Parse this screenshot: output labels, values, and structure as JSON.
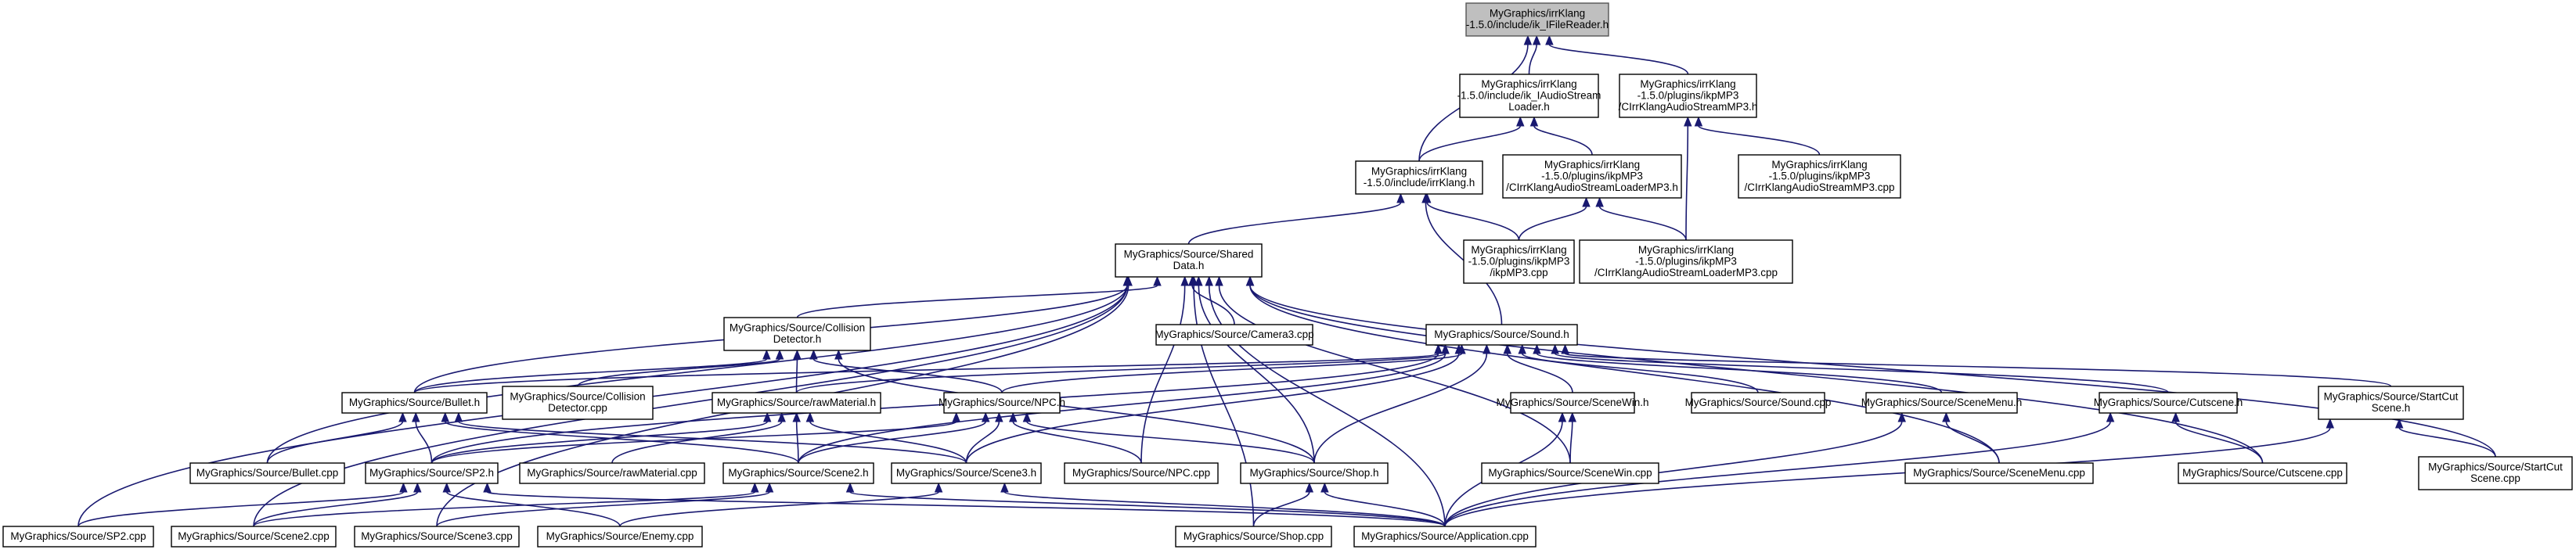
{
  "nodes": {
    "ikIFileReader": [
      "MyGraphics/irrKlang",
      "-1.5.0/include/ik_IFileReader.h"
    ],
    "ikAudioLoader": [
      "MyGraphics/irrKlang",
      "-1.5.0/include/ik_IAudioStream",
      "Loader.h"
    ],
    "CIrrStreamMP3h": [
      "MyGraphics/irrKlang",
      "-1.5.0/plugins/ikpMP3",
      "/CIrrKlangAudioStreamMP3.h"
    ],
    "irrKlangh": [
      "MyGraphics/irrKlang",
      "-1.5.0/include/irrKlang.h"
    ],
    "CIrrLoaderMP3h": [
      "MyGraphics/irrKlang",
      "-1.5.0/plugins/ikpMP3",
      "/CIrrKlangAudioStreamLoaderMP3.h"
    ],
    "CIrrStreamMP3cpp": [
      "MyGraphics/irrKlang",
      "-1.5.0/plugins/ikpMP3",
      "/CIrrKlangAudioStreamMP3.cpp"
    ],
    "SharedData": [
      "MyGraphics/Source/Shared",
      "Data.h"
    ],
    "ikpMP3cpp": [
      "MyGraphics/irrKlang",
      "-1.5.0/plugins/ikpMP3",
      "/ikpMP3.cpp"
    ],
    "CIrrLoaderMP3cpp": [
      "MyGraphics/irrKlang",
      "-1.5.0/plugins/ikpMP3",
      "/CIrrKlangAudioStreamLoaderMP3.cpp"
    ],
    "CollisionDetectorh": [
      "MyGraphics/Source/Collision",
      "Detector.h"
    ],
    "Camera3cpp": [
      "MyGraphics/Source/Camera3.cpp"
    ],
    "Soundh": [
      "MyGraphics/Source/Sound.h"
    ],
    "Bulleth": [
      "MyGraphics/Source/Bullet.h"
    ],
    "CollisionDetectorcpp": [
      "MyGraphics/Source/Collision",
      "Detector.cpp"
    ],
    "rawMaterialh": [
      "MyGraphics/Source/rawMaterial.h"
    ],
    "NPCh": [
      "MyGraphics/Source/NPC.h"
    ],
    "SceneWinh": [
      "MyGraphics/Source/SceneWin.h"
    ],
    "Soundcpp": [
      "MyGraphics/Source/Sound.cpp"
    ],
    "SceneMenuh": [
      "MyGraphics/Source/SceneMenu.h"
    ],
    "Cutsceneh": [
      "MyGraphics/Source/Cutscene.h"
    ],
    "StartCutSceneh": [
      "MyGraphics/Source/StartCut",
      "Scene.h"
    ],
    "Bulletcpp": [
      "MyGraphics/Source/Bullet.cpp"
    ],
    "SP2h": [
      "MyGraphics/Source/SP2.h"
    ],
    "rawMaterialcpp": [
      "MyGraphics/Source/rawMaterial.cpp"
    ],
    "Scene2h": [
      "MyGraphics/Source/Scene2.h"
    ],
    "Scene3h": [
      "MyGraphics/Source/Scene3.h"
    ],
    "NPCcpp": [
      "MyGraphics/Source/NPC.cpp"
    ],
    "Shoph": [
      "MyGraphics/Source/Shop.h"
    ],
    "SceneWincpp": [
      "MyGraphics/Source/SceneWin.cpp"
    ],
    "SceneMenucpp": [
      "MyGraphics/Source/SceneMenu.cpp"
    ],
    "Cutscenecpp": [
      "MyGraphics/Source/Cutscene.cpp"
    ],
    "StartCutScenecpp": [
      "MyGraphics/Source/StartCut",
      "Scene.cpp"
    ],
    "SP2cpp": [
      "MyGraphics/Source/SP2.cpp"
    ],
    "Scene2cpp": [
      "MyGraphics/Source/Scene2.cpp"
    ],
    "Scene3cpp": [
      "MyGraphics/Source/Scene3.cpp"
    ],
    "Enemycpp": [
      "MyGraphics/Source/Enemy.cpp"
    ],
    "Shopcpp": [
      "MyGraphics/Source/Shop.cpp"
    ],
    "Applicationcpp": [
      "MyGraphics/Source/Application.cpp"
    ]
  },
  "root": "ikIFileReader",
  "edges": [
    [
      "ikAudioLoader",
      "ikIFileReader"
    ],
    [
      "CIrrStreamMP3h",
      "ikIFileReader"
    ],
    [
      "irrKlangh",
      "ikIFileReader"
    ],
    [
      "irrKlangh",
      "ikAudioLoader"
    ],
    [
      "CIrrLoaderMP3h",
      "ikAudioLoader"
    ],
    [
      "CIrrStreamMP3cpp",
      "CIrrStreamMP3h"
    ],
    [
      "CIrrLoaderMP3cpp",
      "CIrrStreamMP3h"
    ],
    [
      "SharedData",
      "irrKlangh"
    ],
    [
      "Soundh",
      "irrKlangh"
    ],
    [
      "ikpMP3cpp",
      "irrKlangh"
    ],
    [
      "ikpMP3cpp",
      "CIrrLoaderMP3h"
    ],
    [
      "CIrrLoaderMP3cpp",
      "CIrrLoaderMP3h"
    ],
    [
      "CollisionDetectorh",
      "SharedData"
    ],
    [
      "Camera3cpp",
      "SharedData"
    ],
    [
      "Bulleth",
      "SharedData"
    ],
    [
      "NPCcpp",
      "SharedData"
    ],
    [
      "Shoph",
      "SharedData"
    ],
    [
      "SceneWincpp",
      "SharedData"
    ],
    [
      "SceneMenucpp",
      "SharedData"
    ],
    [
      "Cutscenecpp",
      "SharedData"
    ],
    [
      "StartCutScenecpp",
      "SharedData"
    ],
    [
      "SP2cpp",
      "SharedData"
    ],
    [
      "Scene2cpp",
      "SharedData"
    ],
    [
      "Scene3cpp",
      "SharedData"
    ],
    [
      "Bulletcpp",
      "SharedData"
    ],
    [
      "Shopcpp",
      "SharedData"
    ],
    [
      "Applicationcpp",
      "SharedData"
    ],
    [
      "Bulleth",
      "CollisionDetectorh"
    ],
    [
      "CollisionDetectorcpp",
      "CollisionDetectorh"
    ],
    [
      "rawMaterialh",
      "CollisionDetectorh"
    ],
    [
      "NPCh",
      "CollisionDetectorh"
    ],
    [
      "Shoph",
      "CollisionDetectorh"
    ],
    [
      "Bulleth",
      "Soundh"
    ],
    [
      "rawMaterialh",
      "Soundh"
    ],
    [
      "NPCh",
      "Soundh"
    ],
    [
      "SceneWinh",
      "Soundh"
    ],
    [
      "Soundcpp",
      "Soundh"
    ],
    [
      "SceneMenuh",
      "Soundh"
    ],
    [
      "Cutsceneh",
      "Soundh"
    ],
    [
      "StartCutSceneh",
      "Soundh"
    ],
    [
      "SP2h",
      "Soundh"
    ],
    [
      "Scene2h",
      "Soundh"
    ],
    [
      "Scene3h",
      "Soundh"
    ],
    [
      "Shoph",
      "Soundh"
    ],
    [
      "Bulletcpp",
      "Bulleth"
    ],
    [
      "SP2h",
      "Bulleth"
    ],
    [
      "Scene2h",
      "Bulleth"
    ],
    [
      "Scene3h",
      "Bulleth"
    ],
    [
      "SP2h",
      "rawMaterialh"
    ],
    [
      "rawMaterialcpp",
      "rawMaterialh"
    ],
    [
      "Scene2h",
      "rawMaterialh"
    ],
    [
      "Scene3h",
      "rawMaterialh"
    ],
    [
      "SP2h",
      "NPCh"
    ],
    [
      "Scene2h",
      "NPCh"
    ],
    [
      "Scene3h",
      "NPCh"
    ],
    [
      "NPCcpp",
      "NPCh"
    ],
    [
      "Shoph",
      "NPCh"
    ],
    [
      "SceneWincpp",
      "SceneWinh"
    ],
    [
      "Applicationcpp",
      "SceneWinh"
    ],
    [
      "SceneMenucpp",
      "SceneMenuh"
    ],
    [
      "Applicationcpp",
      "SceneMenuh"
    ],
    [
      "Cutscenecpp",
      "Cutsceneh"
    ],
    [
      "Applicationcpp",
      "Cutsceneh"
    ],
    [
      "StartCutScenecpp",
      "StartCutSceneh"
    ],
    [
      "Applicationcpp",
      "StartCutSceneh"
    ],
    [
      "SP2cpp",
      "SP2h"
    ],
    [
      "Scene2cpp",
      "SP2h"
    ],
    [
      "Enemycpp",
      "SP2h"
    ],
    [
      "Applicationcpp",
      "SP2h"
    ],
    [
      "Scene3cpp",
      "Scene2h"
    ],
    [
      "Scene2cpp",
      "Scene2h"
    ],
    [
      "Applicationcpp",
      "Scene2h"
    ],
    [
      "Enemycpp",
      "Scene3h"
    ],
    [
      "Applicationcpp",
      "Scene3h"
    ],
    [
      "Shopcpp",
      "Shoph"
    ],
    [
      "Applicationcpp",
      "Shoph"
    ]
  ]
}
